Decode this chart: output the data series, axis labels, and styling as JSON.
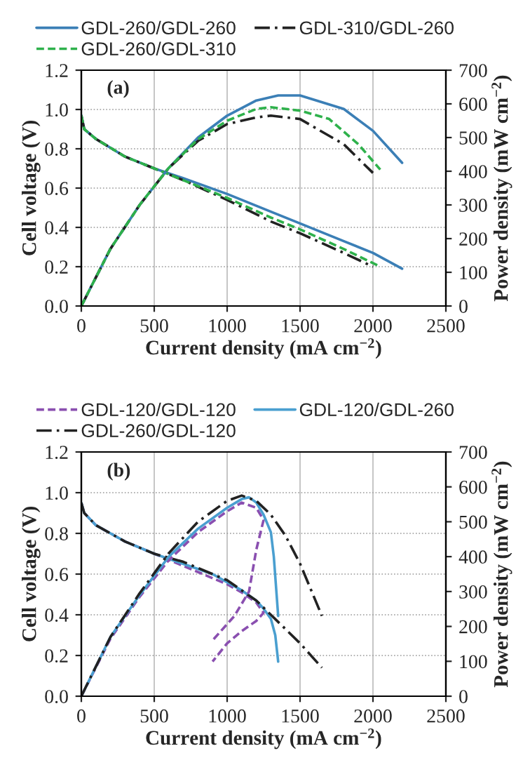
{
  "chart_data": [
    {
      "type": "line",
      "xlabel": "Current density (mA cm$^{−2}$)",
      "ylabel": "Cell voltage (V)",
      "y2label": "Power density (mW cm$^{−2}$)",
      "annotations": [
        "(a)"
      ],
      "xlim": [
        0,
        2500
      ],
      "xticks": [
        0,
        500,
        1000,
        1500,
        2000,
        2500
      ],
      "ylim": [
        0,
        1.2
      ],
      "yticks": [
        {
          "value": 0,
          "label": "0.0"
        },
        {
          "value": 0.2,
          "label": "0.2"
        },
        {
          "value": 0.4,
          "label": "0.4"
        },
        {
          "value": 0.6,
          "label": "0.6"
        },
        {
          "value": 0.8,
          "label": "0.8"
        },
        {
          "value": 1.0,
          "label": "1.0"
        },
        {
          "value": 1.2,
          "label": "1.2"
        }
      ],
      "y2lim": [
        0,
        700
      ],
      "y2ticks": [
        0,
        100,
        200,
        300,
        400,
        500,
        600,
        700
      ],
      "grid": true,
      "legend": "top",
      "series": [
        {
          "name": "GDL-260/GDL-260",
          "color": "#3b7fb6",
          "line_style": "solid",
          "x": [
            0,
            20,
            100,
            300,
            500,
            700,
            1000,
            1300,
            1500,
            1800,
            2000,
            2200
          ],
          "values": [
            0.97,
            0.9,
            0.85,
            0.76,
            0.7,
            0.65,
            0.57,
            0.48,
            0.42,
            0.33,
            0.27,
            0.19
          ]
        },
        {
          "name": "GDL-310/GDL-260",
          "color": "#222222",
          "line_style": "dashdot",
          "x": [
            0,
            20,
            100,
            300,
            500,
            700,
            1000,
            1300,
            1500,
            1800,
            2000
          ],
          "values": [
            0.97,
            0.9,
            0.85,
            0.76,
            0.7,
            0.64,
            0.54,
            0.43,
            0.37,
            0.27,
            0.2
          ]
        },
        {
          "name": "GDL-260/GDL-310",
          "color": "#2eb14b",
          "line_style": "dashed",
          "x": [
            0,
            20,
            100,
            300,
            500,
            700,
            1000,
            1300,
            1500,
            1800,
            2050
          ],
          "values": [
            0.97,
            0.9,
            0.85,
            0.76,
            0.7,
            0.64,
            0.55,
            0.45,
            0.39,
            0.29,
            0.2
          ]
        },
        {
          "axis": "y2",
          "color": "#3b7fb6",
          "line_style": "solid",
          "x": [
            0,
            200,
            400,
            600,
            800,
            1000,
            1200,
            1350,
            1500,
            1800,
            2000,
            2200
          ],
          "values": [
            0,
            170,
            300,
            410,
            500,
            565,
            610,
            625,
            625,
            585,
            520,
            425
          ]
        },
        {
          "axis": "y2",
          "color": "#222222",
          "line_style": "dashdot",
          "x": [
            0,
            200,
            400,
            600,
            800,
            1000,
            1200,
            1300,
            1500,
            1800,
            2000
          ],
          "values": [
            0,
            170,
            300,
            410,
            490,
            540,
            560,
            565,
            555,
            480,
            395
          ]
        },
        {
          "axis": "y2",
          "color": "#2eb14b",
          "line_style": "dashed",
          "x": [
            0,
            200,
            400,
            600,
            800,
            1000,
            1200,
            1300,
            1500,
            1700,
            1900,
            2050
          ],
          "values": [
            0,
            170,
            300,
            410,
            495,
            550,
            585,
            590,
            580,
            555,
            480,
            405
          ]
        }
      ]
    },
    {
      "type": "line",
      "xlabel": "Current density (mA cm$^{−2}$)",
      "ylabel": "Cell voltage (V)",
      "y2label": "Power density (mW cm$^{−2}$)",
      "annotations": [
        "(b)"
      ],
      "xlim": [
        0,
        2500
      ],
      "xticks": [
        0,
        500,
        1000,
        1500,
        2000,
        2500
      ],
      "ylim": [
        0,
        1.2
      ],
      "yticks": [
        {
          "value": 0,
          "label": "0.0"
        },
        {
          "value": 0.2,
          "label": "0.2"
        },
        {
          "value": 0.4,
          "label": "0.4"
        },
        {
          "value": 0.6,
          "label": "0.6"
        },
        {
          "value": 0.8,
          "label": "0.8"
        },
        {
          "value": 1.0,
          "label": "1.0"
        },
        {
          "value": 1.2,
          "label": "1.2"
        }
      ],
      "y2lim": [
        0,
        700
      ],
      "y2ticks": [
        0,
        100,
        200,
        300,
        400,
        500,
        600,
        700
      ],
      "grid": true,
      "legend": "top",
      "series": [
        {
          "name": "GDL-120/GDL-120",
          "color": "#8a4fb0",
          "line_style": "dashed",
          "x": [
            0,
            20,
            100,
            300,
            500,
            700,
            900,
            1000,
            1100,
            1200,
            1250,
            1200,
            1100,
            1000,
            900
          ],
          "values": [
            0.95,
            0.9,
            0.84,
            0.76,
            0.7,
            0.64,
            0.58,
            0.55,
            0.51,
            0.46,
            0.41,
            0.37,
            0.32,
            0.26,
            0.17
          ]
        },
        {
          "name": "GDL-120/GDL-260",
          "color": "#4a9fd0",
          "line_style": "solid",
          "x": [
            0,
            20,
            100,
            300,
            500,
            700,
            900,
            1000,
            1100,
            1200,
            1250,
            1300,
            1330,
            1350
          ],
          "values": [
            0.95,
            0.9,
            0.84,
            0.76,
            0.7,
            0.65,
            0.6,
            0.56,
            0.52,
            0.47,
            0.43,
            0.38,
            0.3,
            0.17
          ]
        },
        {
          "name": "GDL-260/GDL-120",
          "color": "#222222",
          "line_style": "dashdot",
          "x": [
            0,
            20,
            100,
            300,
            500,
            700,
            900,
            1000,
            1100,
            1200,
            1300,
            1400,
            1500,
            1650
          ],
          "values": [
            0.95,
            0.9,
            0.84,
            0.76,
            0.7,
            0.66,
            0.6,
            0.57,
            0.52,
            0.47,
            0.4,
            0.33,
            0.26,
            0.14
          ]
        },
        {
          "axis": "y2",
          "color": "#8a4fb0",
          "line_style": "dashed",
          "x": [
            0,
            200,
            400,
            600,
            800,
            1000,
            1100,
            1200,
            1250,
            1200,
            1150,
            1050,
            900
          ],
          "values": [
            0,
            165,
            285,
            390,
            470,
            530,
            555,
            540,
            505,
            420,
            300,
            230,
            160
          ]
        },
        {
          "axis": "y2",
          "color": "#4a9fd0",
          "line_style": "solid",
          "x": [
            0,
            200,
            400,
            600,
            800,
            1000,
            1100,
            1150,
            1200,
            1250,
            1300,
            1320,
            1350
          ],
          "values": [
            0,
            170,
            290,
            400,
            480,
            540,
            565,
            570,
            555,
            520,
            470,
            400,
            230
          ]
        },
        {
          "axis": "y2",
          "color": "#222222",
          "line_style": "dashdot",
          "x": [
            0,
            200,
            400,
            600,
            800,
            1000,
            1100,
            1200,
            1300,
            1400,
            1500,
            1650
          ],
          "values": [
            0,
            170,
            295,
            410,
            500,
            560,
            575,
            560,
            520,
            460,
            380,
            230
          ]
        }
      ]
    }
  ]
}
